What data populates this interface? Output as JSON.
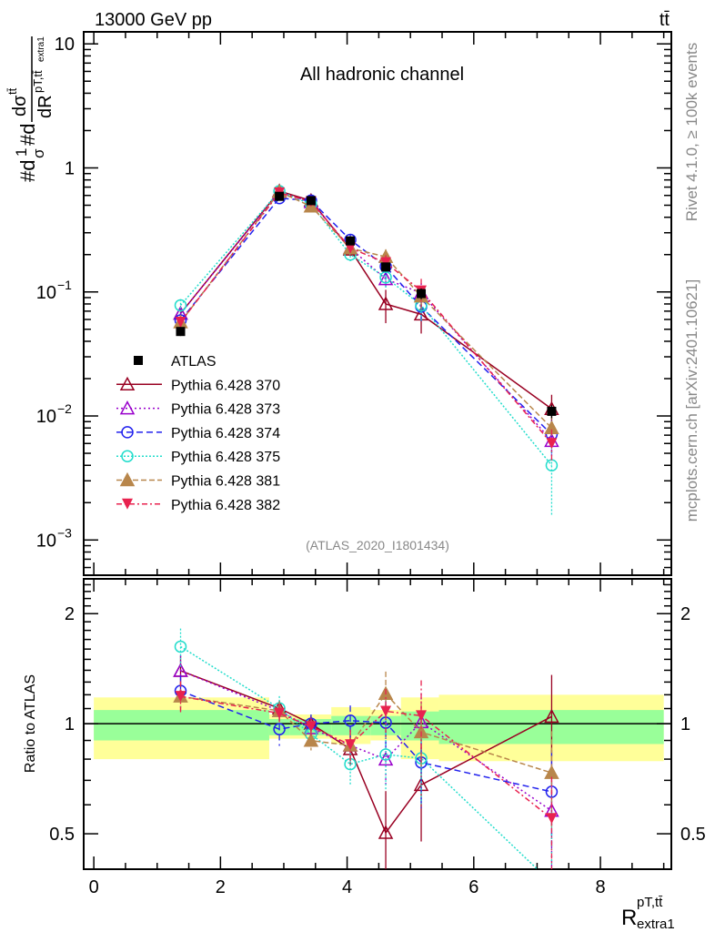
{
  "header": {
    "energy": "13000 GeV pp",
    "process": "tt̄"
  },
  "side": {
    "rivet": "Rivet 4.1.0, ≥ 100k events",
    "mcplots": "mcplots.cern.ch [arXiv:2401.10621]"
  },
  "chart_data": [
    {
      "type": "line",
      "title": "All hadronic channel",
      "analysis": "(ATLAS_2020_I1801434)",
      "ylabel_parts": [
        "#d",
        "1",
        "σ",
        "#d",
        "dσ",
        "tt̄",
        "dR",
        "pT,tt̄",
        "extra1"
      ],
      "yscale": "log",
      "ylim": [
        0.00052,
        12.5
      ],
      "xlim": [
        -0.16,
        9.12
      ],
      "yticks": [
        {
          "v": 10,
          "label": "10"
        },
        {
          "v": 1,
          "label": "1"
        },
        {
          "v": 0.1,
          "label": "10",
          "exp": "−1"
        },
        {
          "v": 0.01,
          "label": "10",
          "exp": "−2"
        },
        {
          "v": 0.001,
          "label": "10",
          "exp": "−3"
        }
      ],
      "x": [
        1.37,
        2.93,
        3.43,
        4.05,
        4.61,
        5.17,
        7.23
      ],
      "series": [
        {
          "name": "ATLAS",
          "color": "#000000",
          "marker": "square",
          "values": [
            0.048,
            0.59,
            0.545,
            0.258,
            0.159,
            0.097,
            0.0109
          ],
          "rel_err": [
            0.08,
            0.05,
            0.05,
            0.06,
            0.08,
            0.1,
            0.12
          ]
        },
        {
          "name": "Pythia 6.428 370",
          "color": "#990022",
          "marker": "tri-open",
          "dash": "",
          "values": [
            0.067,
            0.65,
            0.545,
            0.22,
            0.08,
            0.066,
            0.0114
          ],
          "rel_err": [
            0.1,
            0.05,
            0.05,
            0.1,
            0.3,
            0.3,
            0.3
          ]
        },
        {
          "name": "Pythia 6.428 373",
          "color": "#9900cc",
          "marker": "tri-open",
          "dash": "2,3",
          "values": [
            0.067,
            0.64,
            0.53,
            0.225,
            0.127,
            0.098,
            0.0063
          ],
          "rel_err": [
            0.1,
            0.06,
            0.06,
            0.1,
            0.15,
            0.2,
            0.3
          ]
        },
        {
          "name": "Pythia 6.428 374",
          "color": "#2222ee",
          "marker": "circ-open",
          "dash": "7,4",
          "values": [
            0.059,
            0.57,
            0.545,
            0.263,
            0.16,
            0.076,
            0.0071
          ],
          "rel_err": [
            0.1,
            0.1,
            0.06,
            0.1,
            0.15,
            0.25,
            0.3
          ]
        },
        {
          "name": "Pythia 6.428 375",
          "color": "#22ddcc",
          "marker": "circ-open",
          "dash": "2,2",
          "values": [
            0.078,
            0.65,
            0.51,
            0.2,
            0.131,
            0.078,
            0.004
          ],
          "rel_err": [
            0.12,
            0.08,
            0.06,
            0.12,
            0.2,
            0.25,
            0.6
          ]
        },
        {
          "name": "Pythia 6.428 381",
          "color": "#b8864b",
          "marker": "tri-fill",
          "dash": "6,3",
          "values": [
            0.057,
            0.64,
            0.49,
            0.225,
            0.192,
            0.092,
            0.008
          ],
          "rel_err": [
            0.1,
            0.06,
            0.06,
            0.1,
            0.15,
            0.2,
            0.3
          ]
        },
        {
          "name": "Pythia 6.428 382",
          "color": "#e8224f",
          "marker": "tri-down",
          "dash": "6,3,2,3",
          "values": [
            0.057,
            0.63,
            0.535,
            0.226,
            0.172,
            0.102,
            0.006
          ],
          "rel_err": [
            0.1,
            0.06,
            0.06,
            0.1,
            0.15,
            0.25,
            0.3
          ]
        }
      ]
    },
    {
      "type": "line",
      "ylabel": "Ratio to ATLAS",
      "yscale": "log",
      "ylim": [
        0.4,
        2.49
      ],
      "yticks": [
        {
          "v": 0.5,
          "label": "0.5"
        },
        {
          "v": 1,
          "label": "1"
        },
        {
          "v": 2,
          "label": "2"
        }
      ],
      "xticks": [
        {
          "v": 0,
          "label": "0"
        },
        {
          "v": 2,
          "label": "2"
        },
        {
          "v": 4,
          "label": "4"
        },
        {
          "v": 6,
          "label": "6"
        },
        {
          "v": 8,
          "label": "8"
        }
      ],
      "xlabel_parts": [
        "R",
        "pT,tt̄",
        "extra1"
      ],
      "band_edges": [
        0,
        2.77,
        3.1,
        3.75,
        4.37,
        4.85,
        5.45,
        9.0
      ],
      "band_yellow": [
        [
          0.8,
          1.18
        ],
        [
          0.91,
          1.06
        ],
        [
          0.91,
          1.06
        ],
        [
          0.88,
          1.11
        ],
        [
          0.9,
          1.09
        ],
        [
          0.8,
          1.18
        ],
        [
          0.79,
          1.2
        ]
      ],
      "band_green": [
        [
          0.9,
          1.09
        ],
        [
          0.93,
          1.03
        ],
        [
          0.93,
          1.03
        ],
        [
          0.93,
          1.05
        ],
        [
          0.93,
          1.05
        ],
        [
          0.9,
          1.08
        ],
        [
          0.88,
          1.09
        ]
      ],
      "band_colors": {
        "yellow": "#ffff99",
        "green": "#99ff99"
      }
    }
  ]
}
